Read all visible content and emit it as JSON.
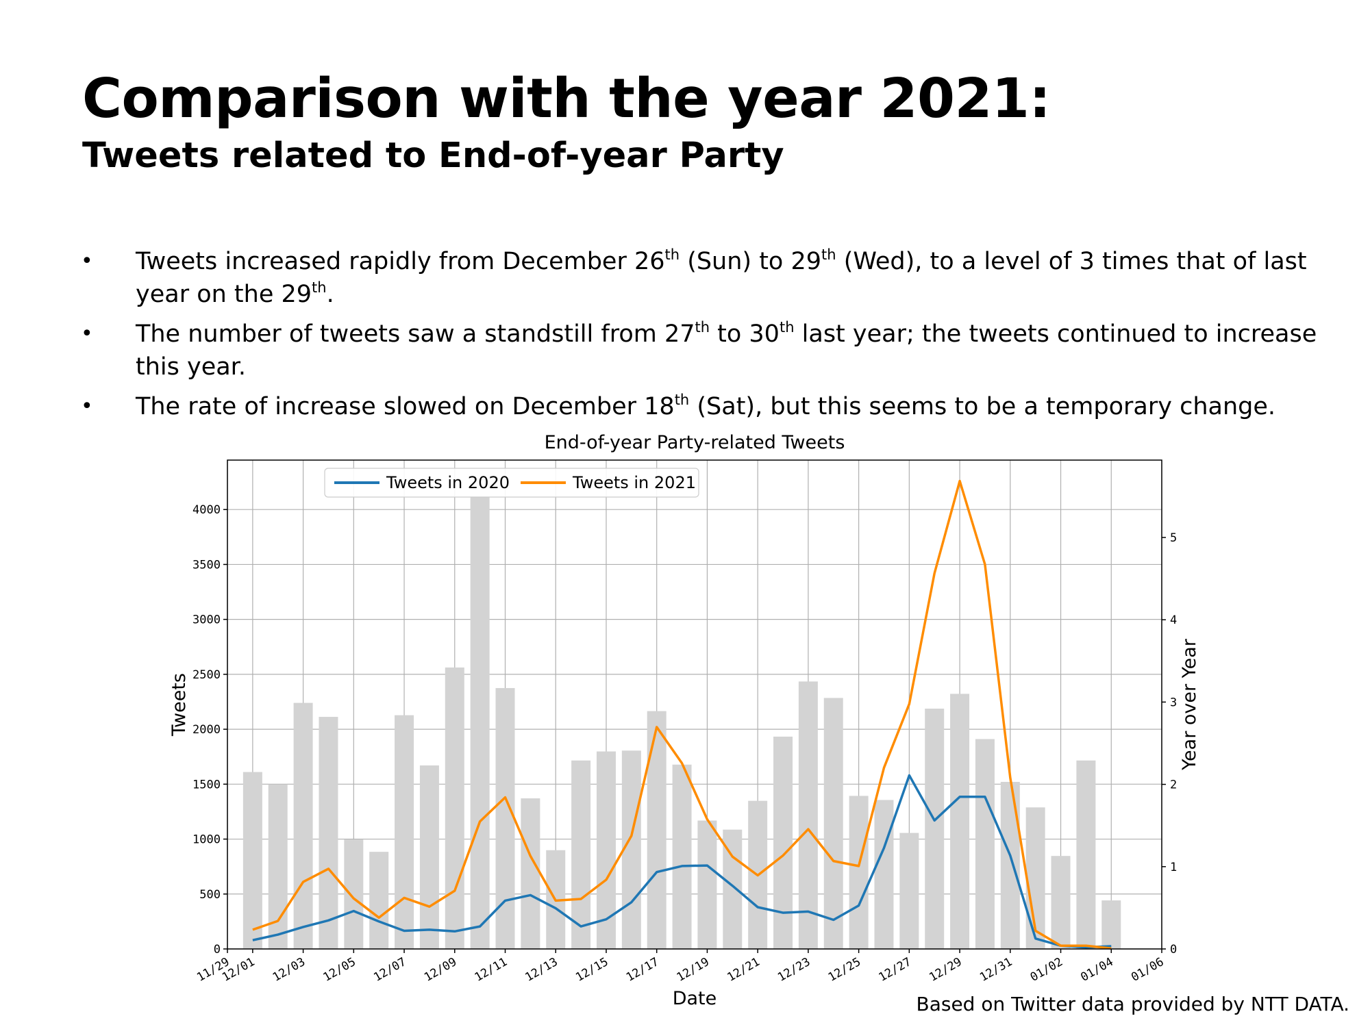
{
  "slide": {
    "title": "Comparison with the year 2021:",
    "subtitle": "Tweets related to End-of-year Party",
    "bullets": [
      [
        {
          "t": "Tweets increased rapidly from December 26"
        },
        {
          "t": "th",
          "sup": true
        },
        {
          "t": " (Sun) to 29"
        },
        {
          "t": "th",
          "sup": true
        },
        {
          "t": " (Wed), to a level of 3 times that of last year on the 29"
        },
        {
          "t": "th",
          "sup": true
        },
        {
          "t": "."
        }
      ],
      [
        {
          "t": "The number of tweets saw a standstill from 27"
        },
        {
          "t": "th",
          "sup": true
        },
        {
          "t": " to 30"
        },
        {
          "t": "th",
          "sup": true
        },
        {
          "t": " last year; the tweets continued to increase this year."
        }
      ],
      [
        {
          "t": "The rate of increase slowed on December 18"
        },
        {
          "t": "th",
          "sup": true
        },
        {
          "t": " (Sat), but this seems to be a temporary change."
        }
      ]
    ],
    "bullet_glyph": "•",
    "footnote": "Based on Twitter data provided by NTT DATA."
  },
  "chart_data": {
    "type": "bar",
    "title": "End-of-year Party-related Tweets",
    "xlabel": "Date",
    "ylabel": "Tweets",
    "y2label": "Year over Year",
    "xlim": [
      "11/29",
      "01/06"
    ],
    "ylim": [
      0,
      4450
    ],
    "y2lim": [
      0,
      5.94
    ],
    "xticks": [
      "11/29",
      "12/01",
      "12/03",
      "12/05",
      "12/07",
      "12/09",
      "12/11",
      "12/13",
      "12/15",
      "12/17",
      "12/19",
      "12/21",
      "12/23",
      "12/25",
      "12/27",
      "12/29",
      "12/31",
      "01/02",
      "01/04",
      "01/06"
    ],
    "yticks": [
      "0",
      "500",
      "1000",
      "1500",
      "2000",
      "2500",
      "3000",
      "3500",
      "4000"
    ],
    "y2ticks": [
      "0",
      "1",
      "2",
      "3",
      "4",
      "5"
    ],
    "grid": true,
    "legend_position": "top-left",
    "dates": [
      "12/01",
      "12/02",
      "12/03",
      "12/04",
      "12/05",
      "12/06",
      "12/07",
      "12/08",
      "12/09",
      "12/10",
      "12/11",
      "12/12",
      "12/13",
      "12/14",
      "12/15",
      "12/16",
      "12/17",
      "12/18",
      "12/19",
      "12/20",
      "12/21",
      "12/22",
      "12/23",
      "12/24",
      "12/25",
      "12/26",
      "12/27",
      "12/28",
      "12/29",
      "12/30",
      "12/31",
      "01/01",
      "01/02",
      "01/03",
      "01/04"
    ],
    "bars": {
      "axis": "right",
      "color": "#d3d3d3",
      "values": [
        2.15,
        2.0,
        2.99,
        2.82,
        1.33,
        1.18,
        2.84,
        2.23,
        3.42,
        5.51,
        3.17,
        1.83,
        1.2,
        2.29,
        2.4,
        2.41,
        2.89,
        2.24,
        1.56,
        1.45,
        1.8,
        2.58,
        3.25,
        3.05,
        1.86,
        1.81,
        1.41,
        2.92,
        3.1,
        2.55,
        2.03,
        1.72,
        1.13,
        2.29,
        0.59
      ]
    },
    "series": [
      {
        "name": "Tweets in 2020",
        "color": "#1f77b4",
        "values": [
          80,
          130,
          200,
          260,
          345,
          250,
          165,
          175,
          160,
          205,
          440,
          490,
          370,
          205,
          270,
          425,
          700,
          755,
          760,
          575,
          380,
          330,
          340,
          265,
          395,
          920,
          1580,
          1170,
          1385,
          1385,
          850,
          95,
          30,
          15,
          25
        ]
      },
      {
        "name": "Tweets in 2021",
        "color": "#ff8c00",
        "values": [
          175,
          255,
          610,
          730,
          460,
          285,
          465,
          385,
          530,
          1160,
          1380,
          845,
          440,
          455,
          630,
          1030,
          2020,
          1690,
          1180,
          840,
          670,
          850,
          1090,
          800,
          755,
          1650,
          2230,
          3420,
          4260,
          3500,
          1560,
          165,
          30,
          30,
          5
        ]
      }
    ]
  }
}
